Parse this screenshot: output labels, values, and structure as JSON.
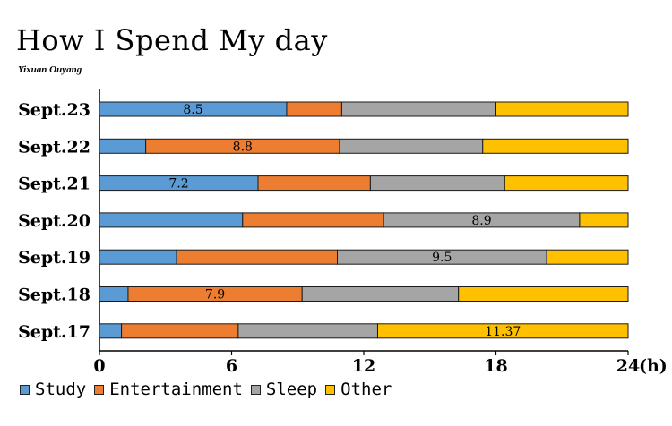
{
  "title": "How I Spend My day",
  "subtitle": "Yixuan Ouyang",
  "axis_unit": "(h)",
  "colors": {
    "Study": "#5b9bd5",
    "Entertainment": "#ed7d31",
    "Sleep": "#a5a5a5",
    "Other": "#ffc000"
  },
  "chart_data": {
    "type": "bar",
    "orientation": "horizontal",
    "stacked": true,
    "categories": [
      "Sept.23",
      "Sept.22",
      "Sept.21",
      "Sept.20",
      "Sept.19",
      "Sept.18",
      "Sept.17"
    ],
    "series": [
      {
        "name": "Study",
        "values": [
          8.5,
          2.1,
          7.2,
          6.5,
          3.5,
          1.3,
          1.0
        ]
      },
      {
        "name": "Entertainment",
        "values": [
          2.5,
          8.8,
          5.1,
          6.4,
          7.3,
          7.9,
          5.3
        ]
      },
      {
        "name": "Sleep",
        "values": [
          7.0,
          6.5,
          6.1,
          8.9,
          9.5,
          7.1,
          6.33
        ]
      },
      {
        "name": "Other",
        "values": [
          6.0,
          6.6,
          5.6,
          2.2,
          3.7,
          7.7,
          11.37
        ]
      }
    ],
    "data_labels": [
      {
        "category": "Sept.23",
        "series": "Study",
        "text": "8.5"
      },
      {
        "category": "Sept.22",
        "series": "Entertainment",
        "text": "8.8"
      },
      {
        "category": "Sept.21",
        "series": "Study",
        "text": "7.2"
      },
      {
        "category": "Sept.20",
        "series": "Sleep",
        "text": "8.9"
      },
      {
        "category": "Sept.19",
        "series": "Sleep",
        "text": "9.5"
      },
      {
        "category": "Sept.18",
        "series": "Entertainment",
        "text": "7.9"
      },
      {
        "category": "Sept.17",
        "series": "Other",
        "text": "11.37"
      }
    ],
    "xticks": [
      "0",
      "6",
      "12",
      "18",
      "24"
    ],
    "xlim": [
      0,
      24
    ],
    "grid": false,
    "legend_position": "bottom-left"
  }
}
